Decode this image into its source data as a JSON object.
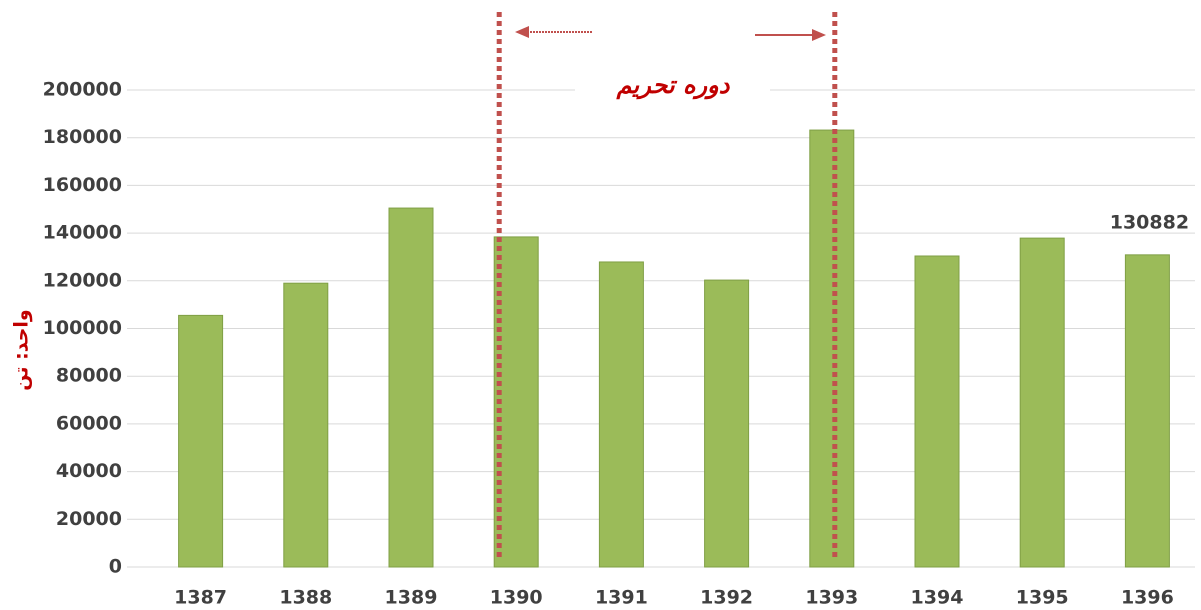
{
  "chart_data": {
    "type": "bar",
    "annotation": "دوره تحریم",
    "y_label": "واحد: تن",
    "categories": [
      "1387",
      "1388",
      "1389",
      "1390",
      "1391",
      "1392",
      "1393",
      "1394",
      "1395",
      "1396"
    ],
    "values": [
      105500,
      119000,
      150500,
      138400,
      127900,
      120300,
      183200,
      130400,
      137900,
      130882
    ],
    "color": "#9bbb59",
    "ylim": [
      0,
      200000
    ],
    "yticks": [
      0,
      20000,
      40000,
      60000,
      80000,
      100000,
      120000,
      140000,
      160000,
      180000,
      200000
    ],
    "grid": true
  }
}
